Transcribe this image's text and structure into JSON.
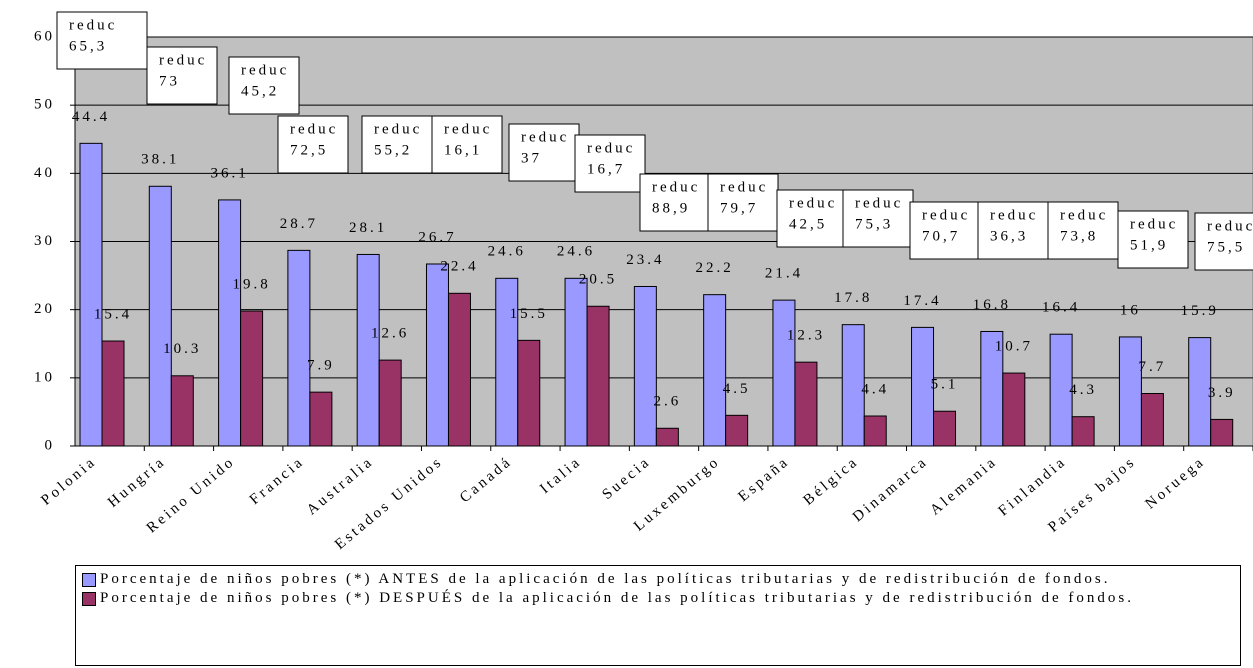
{
  "chart_data": {
    "type": "bar",
    "categories": [
      "Polonia",
      "Hungría",
      "Reino Unido",
      "Francia",
      "Australia",
      "Estados Unidos",
      "Canadá",
      "Italia",
      "Suecia",
      "Luxemburgo",
      "España",
      "Bélgica",
      "Dinamarca",
      "Alemania",
      "Finlandia",
      "Países bajos",
      "Noruega"
    ],
    "series": [
      {
        "name": "Porcentaje de niños pobres (*) ANTES de la aplicación de las políticas tributarias y de redistribución de fondos.",
        "color": "#9999ff",
        "values": [
          44.4,
          38.1,
          36.1,
          28.7,
          28.1,
          26.7,
          24.6,
          24.6,
          23.4,
          22.2,
          21.4,
          17.8,
          17.4,
          16.8,
          16.4,
          16,
          15.9
        ]
      },
      {
        "name": "Porcentaje de niños pobres (*) DESPUÉS de la aplicación de las políticas tributarias y de redistribución de fondos.",
        "color": "#993366",
        "values": [
          15.4,
          10.3,
          19.8,
          7.9,
          12.6,
          22.4,
          15.5,
          20.5,
          2.6,
          4.5,
          12.3,
          4.4,
          5.1,
          10.7,
          4.3,
          7.7,
          3.9
        ]
      }
    ],
    "annotations": [
      [
        "reduc",
        "65,3"
      ],
      [
        "reduc",
        "73"
      ],
      [
        "reduc",
        "45,2"
      ],
      [
        "reduc",
        "72,5"
      ],
      [
        "reduc",
        "55,2"
      ],
      [
        "reduc",
        "16,1"
      ],
      [
        "reduc",
        "37"
      ],
      [
        "reduc",
        "16,7"
      ],
      [
        "reduc",
        "88,9"
      ],
      [
        "reduc",
        "79,7"
      ],
      [
        "reduc",
        "42,5"
      ],
      [
        "reduc",
        "75,3"
      ],
      [
        "reduc",
        "70,7"
      ],
      [
        "reduc",
        "36,3"
      ],
      [
        "reduc",
        "73,8"
      ],
      [
        "reduc",
        "51,9"
      ],
      [
        "reduc",
        "75,5"
      ]
    ],
    "ylim": [
      0,
      60
    ],
    "yticks": [
      0,
      10,
      20,
      30,
      40,
      50,
      60
    ],
    "grid": true
  }
}
